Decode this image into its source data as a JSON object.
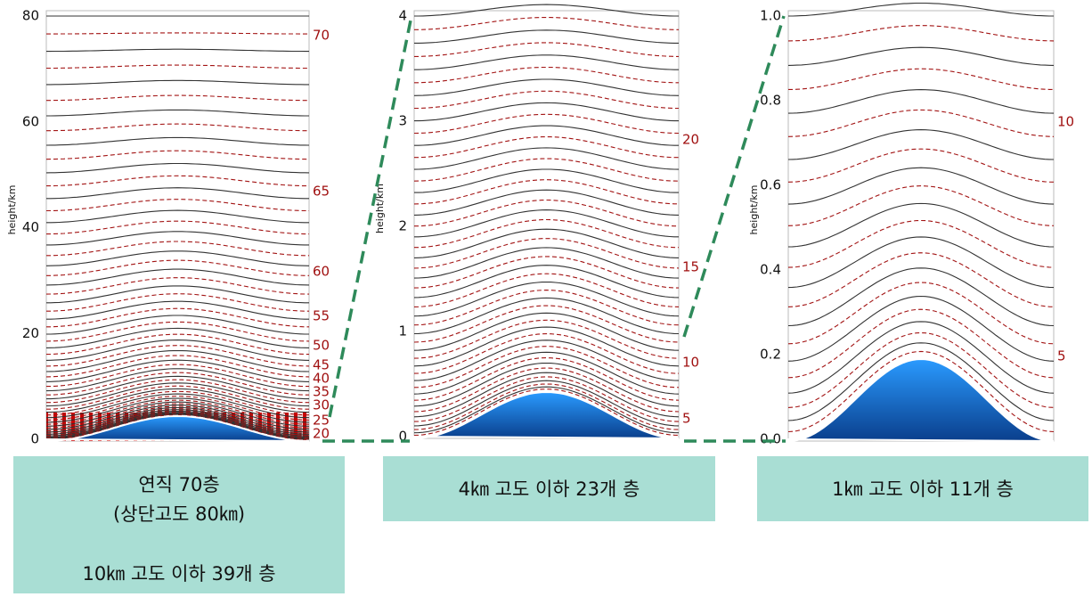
{
  "panels": [
    {
      "axis_label": "height/km",
      "ticks": [
        "0",
        "20",
        "40",
        "60",
        "80"
      ],
      "level_labels": [
        "70",
        "65",
        "60",
        "55",
        "50",
        "45",
        "40",
        "35",
        "30",
        "25",
        "20"
      ]
    },
    {
      "axis_label": "height/km",
      "ticks": [
        "0",
        "1",
        "2",
        "3",
        "4"
      ],
      "level_labels": [
        "20",
        "15",
        "10",
        "5"
      ]
    },
    {
      "axis_label": "height/km",
      "ticks": [
        "0.0",
        "0.2",
        "0.4",
        "0.6",
        "0.8",
        "1.0"
      ],
      "level_labels": [
        "10",
        "5"
      ]
    }
  ],
  "captions": [
    [
      "연직 70층",
      "(상단고도 80㎞)",
      "10㎞ 고도 이하 39개 층"
    ],
    [
      "4㎞ 고도 이하 23개 층"
    ],
    [
      "1㎞ 고도 이하 11개 층"
    ]
  ]
}
